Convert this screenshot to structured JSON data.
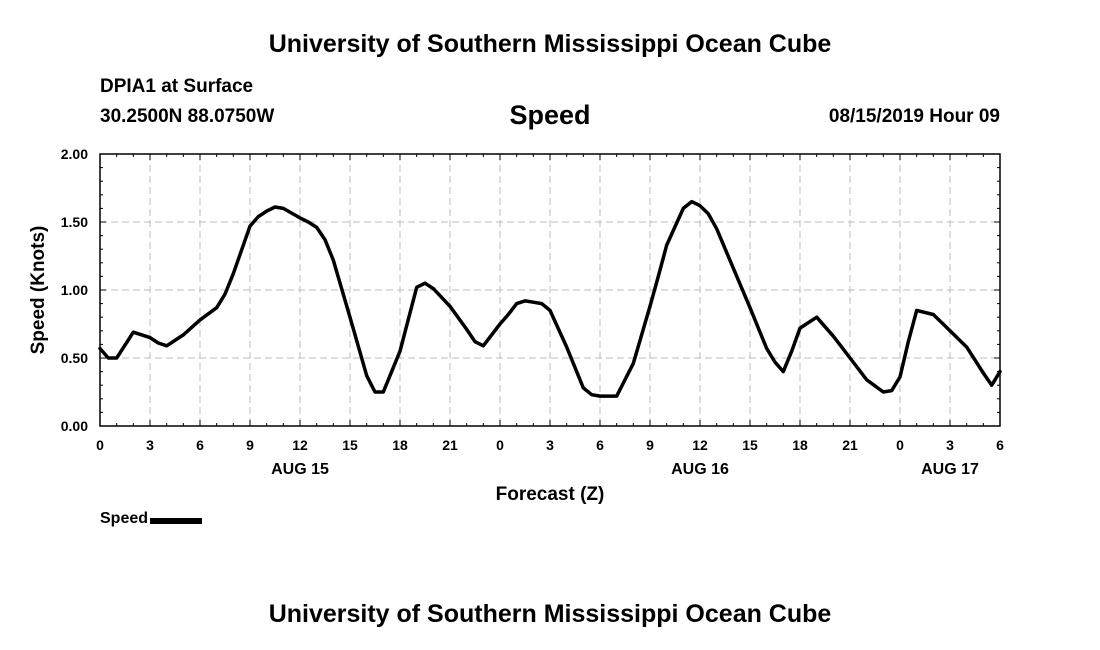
{
  "header": {
    "title": "University of Southern Mississippi Ocean Cube",
    "station_line1": "DPIA1 at Surface",
    "station_line2": "30.2500N 88.0750W",
    "datetime": "08/15/2019 Hour 09"
  },
  "footer": {
    "title": "University of Southern Mississippi Ocean Cube"
  },
  "legend": {
    "label": "Speed"
  },
  "chart_data": {
    "type": "line",
    "title": "Speed",
    "xlabel": "Forecast (Z)",
    "ylabel": "Speed (Knots)",
    "xlim": [
      0,
      54
    ],
    "ylim": [
      0.0,
      2.0
    ],
    "grid": true,
    "legend_position": "bottom-left",
    "x_ticks": [
      0,
      3,
      6,
      9,
      12,
      15,
      18,
      21,
      24,
      27,
      30,
      33,
      36,
      39,
      42,
      45,
      48,
      51,
      54
    ],
    "x_tick_labels": [
      "0",
      "3",
      "6",
      "9",
      "12",
      "15",
      "18",
      "21",
      "0",
      "3",
      "6",
      "9",
      "12",
      "15",
      "18",
      "21",
      "0",
      "3",
      "6"
    ],
    "y_ticks": [
      0.0,
      0.5,
      1.0,
      1.5,
      2.0
    ],
    "y_tick_labels": [
      "0.00",
      "0.50",
      "1.00",
      "1.50",
      "2.00"
    ],
    "date_labels": [
      {
        "x": 12,
        "label": "AUG 15"
      },
      {
        "x": 36,
        "label": "AUG 16"
      },
      {
        "x": 51,
        "label": "AUG 17"
      }
    ],
    "series": [
      {
        "name": "Speed",
        "x": [
          0,
          0.5,
          1,
          2,
          3,
          3.5,
          4,
          5,
          6,
          7,
          7.5,
          8,
          9,
          9.5,
          10,
          10.5,
          11,
          12,
          12.5,
          13,
          13.5,
          14,
          15,
          16,
          16.5,
          17,
          18,
          19,
          19.5,
          20,
          21,
          22,
          22.5,
          23,
          24,
          24.5,
          25,
          25.5,
          26,
          26.5,
          27,
          28,
          29,
          29.5,
          30,
          30.5,
          31,
          32,
          33,
          33.5,
          34,
          35,
          35.5,
          36,
          36.5,
          37,
          38,
          39,
          40,
          40.5,
          41,
          41.5,
          42,
          43,
          44,
          44.5,
          45,
          46,
          47,
          47.5,
          48,
          48.5,
          49,
          50,
          50.5,
          51,
          52,
          53,
          53.5,
          54
        ],
        "values": [
          0.57,
          0.5,
          0.5,
          0.69,
          0.65,
          0.61,
          0.59,
          0.67,
          0.78,
          0.87,
          0.97,
          1.12,
          1.47,
          1.54,
          1.58,
          1.61,
          1.6,
          1.53,
          1.5,
          1.46,
          1.37,
          1.22,
          0.8,
          0.37,
          0.25,
          0.25,
          0.55,
          1.02,
          1.05,
          1.01,
          0.88,
          0.71,
          0.62,
          0.59,
          0.75,
          0.82,
          0.9,
          0.92,
          0.91,
          0.9,
          0.85,
          0.58,
          0.28,
          0.23,
          0.22,
          0.22,
          0.22,
          0.46,
          0.88,
          1.1,
          1.33,
          1.6,
          1.65,
          1.62,
          1.56,
          1.45,
          1.16,
          0.87,
          0.57,
          0.47,
          0.4,
          0.55,
          0.72,
          0.8,
          0.66,
          0.58,
          0.5,
          0.34,
          0.25,
          0.26,
          0.36,
          0.62,
          0.85,
          0.82,
          0.76,
          0.7,
          0.58,
          0.39,
          0.3,
          0.4
        ]
      }
    ]
  }
}
